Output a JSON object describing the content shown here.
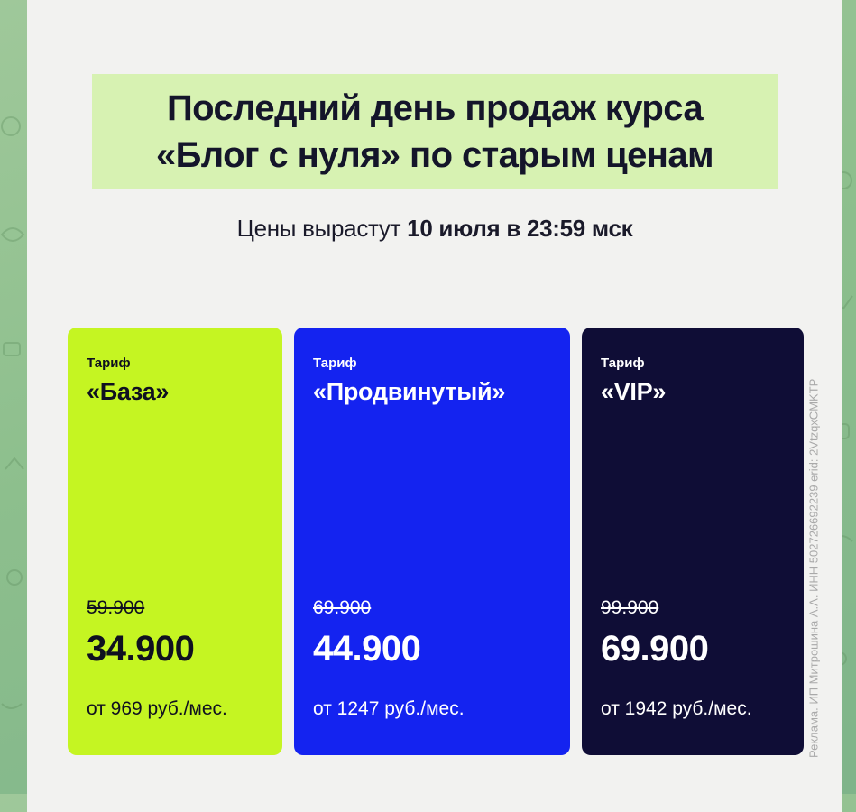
{
  "headline": {
    "line1": "Последний день продаж курса",
    "line2": "«Блог с нуля» по старым ценам"
  },
  "subtitle": {
    "prefix": "Цены вырастут ",
    "deadline": "10 июля в 23:59 мск"
  },
  "ad_label": "Реклама. ИП Митрошина А.А. ИНН 502726692239 erid: 2VtzqxCMKTP",
  "plans": [
    {
      "label": "Тариф",
      "name": "«База»",
      "old_price": "59.900",
      "new_price": "34.900",
      "monthly": "от 969 руб./мес.",
      "color": "#c5f522"
    },
    {
      "label": "Тариф",
      "name": "«Продвинутый»",
      "old_price": "69.900",
      "new_price": "44.900",
      "monthly": "от 1247 руб./мес.",
      "color": "#1423f0"
    },
    {
      "label": "Тариф",
      "name": "«VIP»",
      "old_price": "99.900",
      "new_price": "69.900",
      "monthly": "от 1942 руб./мес.",
      "color": "#0f0d36"
    }
  ],
  "colors": {
    "chat_background": "#8dbf8d",
    "card_background": "#f2f2f0",
    "headline_highlight": "#d7f2b2",
    "text_dark": "#14152a"
  }
}
